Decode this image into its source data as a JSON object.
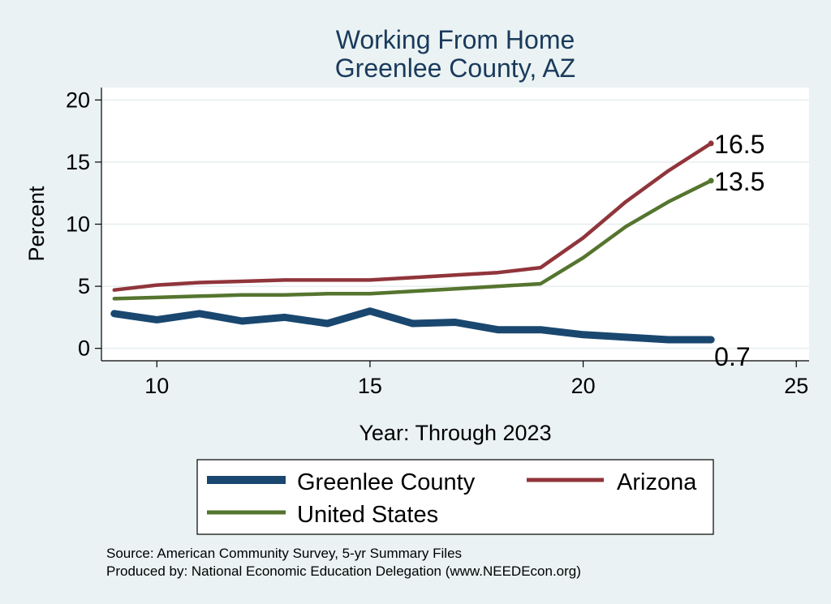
{
  "chart_data": {
    "type": "line",
    "title": [
      "Working From Home",
      "Greenlee County, AZ"
    ],
    "xlabel": "Year: Through 2023",
    "ylabel": "Percent",
    "xlim": [
      8.7,
      25.3
    ],
    "ylim": [
      -1.0,
      21.0
    ],
    "xticks": [
      10,
      15,
      20,
      25
    ],
    "yticks": [
      0,
      5,
      10,
      15,
      20
    ],
    "grid": true,
    "legend_position": "bottom",
    "x": [
      9,
      10,
      11,
      12,
      13,
      14,
      15,
      16,
      17,
      18,
      19,
      20,
      21,
      22,
      23
    ],
    "series": [
      {
        "name": "Greenlee County",
        "color": "#1a476f",
        "width": "thick",
        "values": [
          2.8,
          2.3,
          2.8,
          2.2,
          2.5,
          2.0,
          3.0,
          2.0,
          2.1,
          1.5,
          1.5,
          1.1,
          0.9,
          0.7,
          0.7
        ],
        "end_label": "0.7"
      },
      {
        "name": "Arizona",
        "color": "#90353b",
        "width": "medium",
        "values": [
          4.7,
          5.1,
          5.3,
          5.4,
          5.5,
          5.5,
          5.5,
          5.7,
          5.9,
          6.1,
          6.5,
          8.9,
          11.8,
          14.3,
          16.5
        ],
        "end_label": "16.5"
      },
      {
        "name": "United States",
        "color": "#55752f",
        "width": "medium",
        "values": [
          4.0,
          4.1,
          4.2,
          4.3,
          4.3,
          4.4,
          4.4,
          4.6,
          4.8,
          5.0,
          5.2,
          7.3,
          9.8,
          11.8,
          13.5
        ],
        "end_label": "13.5"
      }
    ]
  },
  "notes": {
    "source": "Source: American Community Survey, 5-yr Summary Files",
    "produced": "Produced by: National Economic Education Delegation (www.NEEDEcon.org)"
  }
}
